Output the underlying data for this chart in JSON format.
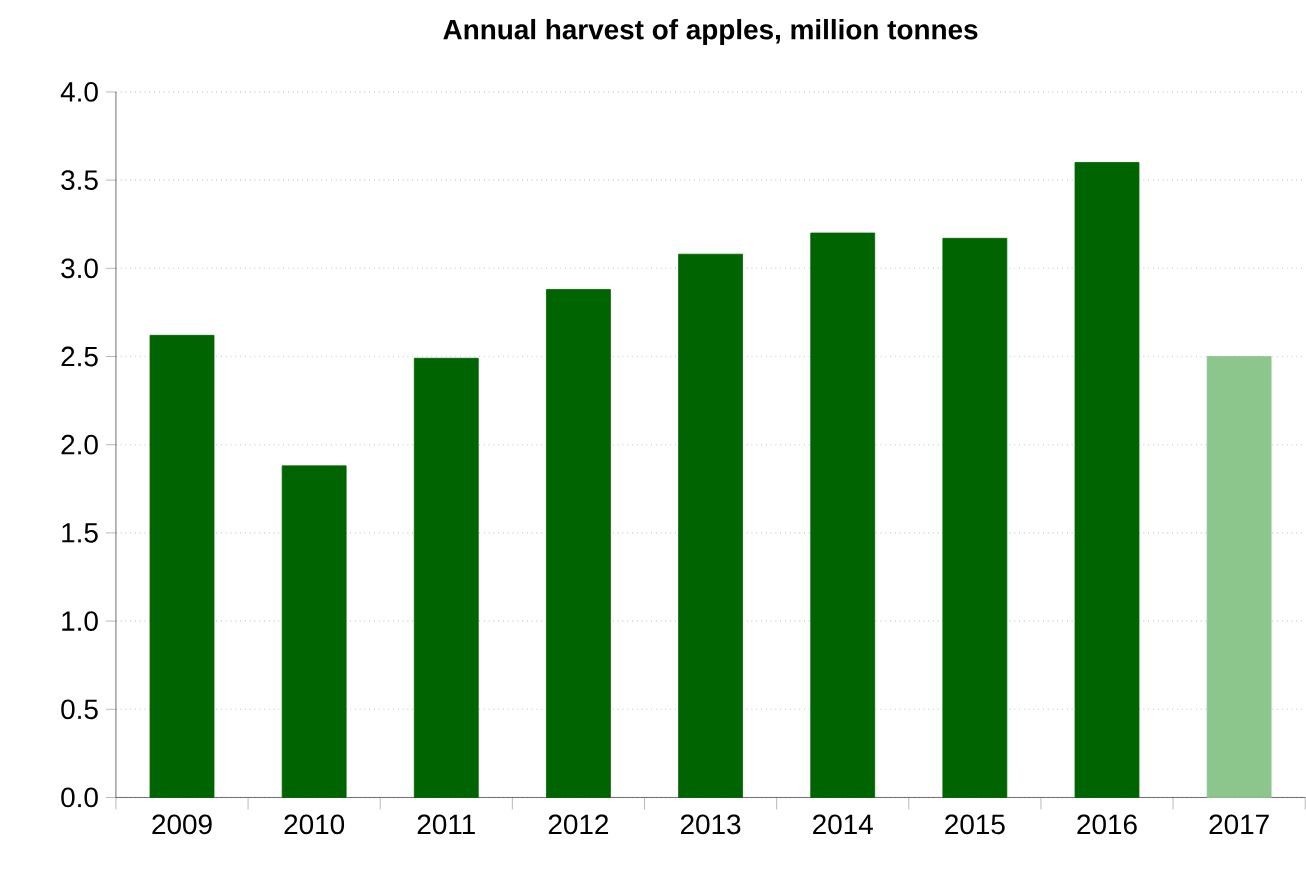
{
  "chart_data": {
    "type": "bar",
    "title": "Annual harvest of apples, million tonnes",
    "categories": [
      "2009",
      "2010",
      "2011",
      "2012",
      "2013",
      "2014",
      "2015",
      "2016",
      "2017"
    ],
    "values": [
      2.62,
      1.88,
      2.49,
      2.88,
      3.08,
      3.2,
      3.17,
      3.6,
      2.5
    ],
    "colors": [
      "#006400",
      "#006400",
      "#006400",
      "#006400",
      "#006400",
      "#006400",
      "#006400",
      "#006400",
      "#8cc68c"
    ],
    "ylim": [
      0,
      4
    ],
    "yticks": [
      {
        "value": 0,
        "label": "0.0"
      },
      {
        "value": 0.5,
        "label": "0.5"
      },
      {
        "value": 1,
        "label": "1.0"
      },
      {
        "value": 1.5,
        "label": "1.5"
      },
      {
        "value": 2,
        "label": "2.0"
      },
      {
        "value": 2.5,
        "label": "2.5"
      },
      {
        "value": 3,
        "label": "3.0"
      },
      {
        "value": 3.5,
        "label": "3.5"
      },
      {
        "value": 4,
        "label": "4.0"
      }
    ],
    "grid": "y"
  }
}
